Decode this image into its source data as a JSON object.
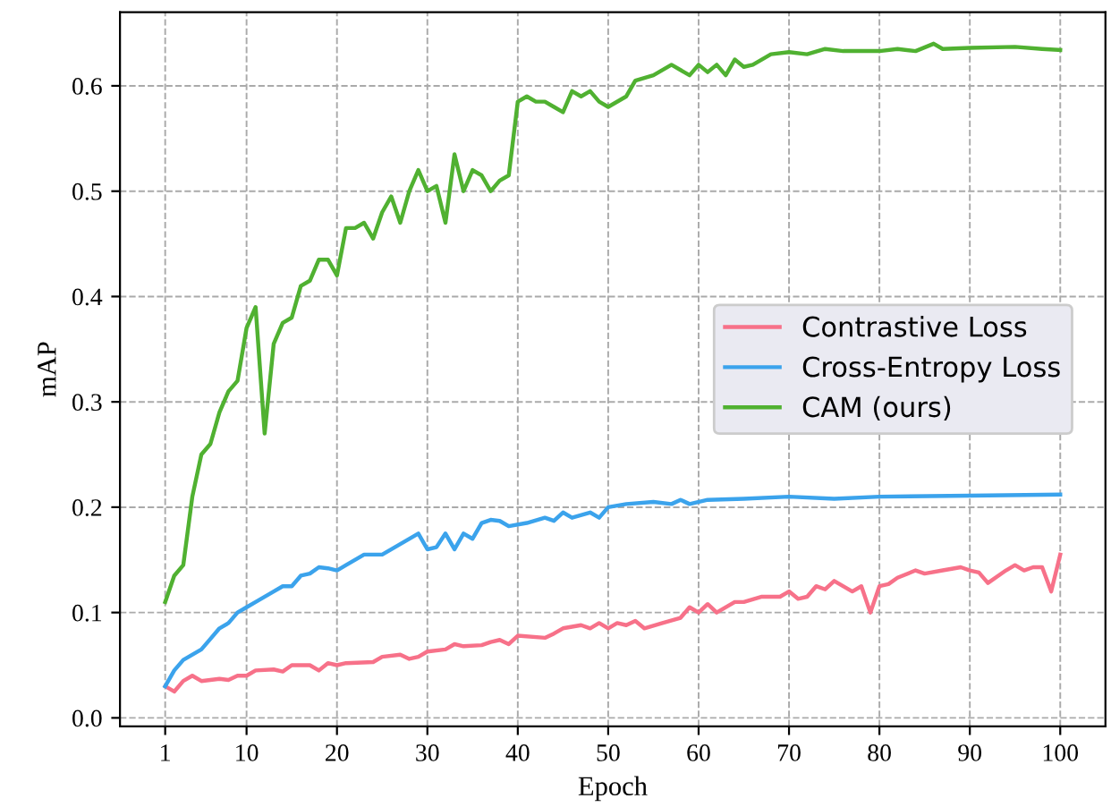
{
  "chart_data": {
    "type": "line",
    "xlabel": "Epoch",
    "ylabel": "mAP",
    "xlim": [
      -4,
      105
    ],
    "ylim": [
      -0.008,
      0.67
    ],
    "xticks": [
      1,
      10,
      20,
      30,
      40,
      50,
      60,
      70,
      80,
      90,
      100
    ],
    "yticks": [
      {
        "value": 0,
        "label": "0.0"
      },
      0.1,
      0.2,
      0.3,
      0.4,
      0.5,
      0.6
    ],
    "grid": true,
    "legend": "right",
    "marker": "none",
    "line_style": "solid",
    "series": [
      {
        "name": "Contrastive Loss",
        "color": "#f77189",
        "x": [
          1,
          2,
          3,
          4,
          5,
          7,
          8,
          9,
          10,
          11,
          13,
          14,
          15,
          17,
          18,
          19,
          20,
          21,
          24,
          25,
          27,
          28,
          29,
          30,
          32,
          33,
          34,
          36,
          37,
          38,
          39,
          40,
          43,
          44,
          45,
          47,
          48,
          49,
          50,
          51,
          52,
          53,
          54,
          56,
          58,
          59,
          60,
          61,
          62,
          64,
          65,
          67,
          69,
          70,
          71,
          72,
          73,
          74,
          75,
          77,
          78,
          79,
          80,
          81,
          82,
          84,
          85,
          87,
          89,
          90,
          91,
          92,
          94,
          95,
          96,
          97,
          98,
          99,
          100
        ],
        "values": [
          0.03,
          0.025,
          0.035,
          0.04,
          0.035,
          0.037,
          0.036,
          0.04,
          0.04,
          0.045,
          0.046,
          0.044,
          0.05,
          0.05,
          0.045,
          0.052,
          0.05,
          0.052,
          0.053,
          0.058,
          0.06,
          0.056,
          0.058,
          0.063,
          0.065,
          0.07,
          0.068,
          0.069,
          0.072,
          0.074,
          0.07,
          0.078,
          0.076,
          0.08,
          0.085,
          0.088,
          0.085,
          0.09,
          0.085,
          0.09,
          0.088,
          0.092,
          0.085,
          0.09,
          0.095,
          0.105,
          0.1,
          0.108,
          0.1,
          0.11,
          0.11,
          0.115,
          0.115,
          0.12,
          0.113,
          0.115,
          0.125,
          0.122,
          0.13,
          0.12,
          0.125,
          0.1,
          0.125,
          0.127,
          0.133,
          0.14,
          0.137,
          0.14,
          0.143,
          0.14,
          0.138,
          0.128,
          0.14,
          0.145,
          0.14,
          0.143,
          0.143,
          0.12,
          0.155
        ]
      },
      {
        "name": "Cross-Entropy Loss",
        "color": "#3ba3ec",
        "x": [
          1,
          2,
          3,
          5,
          6,
          7,
          8,
          9,
          10,
          11,
          13,
          14,
          15,
          16,
          17,
          18,
          19,
          20,
          21,
          23,
          25,
          27,
          29,
          30,
          31,
          32,
          33,
          34,
          35,
          36,
          37,
          38,
          39,
          41,
          43,
          44,
          45,
          46,
          48,
          49,
          50,
          52,
          55,
          57,
          58,
          59,
          61,
          65,
          70,
          75,
          80,
          90,
          100
        ],
        "values": [
          0.03,
          0.045,
          0.055,
          0.065,
          0.075,
          0.085,
          0.09,
          0.1,
          0.105,
          0.11,
          0.12,
          0.125,
          0.125,
          0.135,
          0.137,
          0.143,
          0.142,
          0.14,
          0.145,
          0.155,
          0.155,
          0.165,
          0.175,
          0.16,
          0.162,
          0.175,
          0.16,
          0.175,
          0.17,
          0.185,
          0.188,
          0.187,
          0.182,
          0.185,
          0.19,
          0.187,
          0.195,
          0.19,
          0.195,
          0.19,
          0.2,
          0.203,
          0.205,
          0.203,
          0.207,
          0.203,
          0.207,
          0.208,
          0.21,
          0.208,
          0.21,
          0.211,
          0.212
        ]
      },
      {
        "name": "CAM (ours)",
        "color": "#50b131",
        "x": [
          1,
          2,
          3,
          4,
          5,
          6,
          7,
          8,
          9,
          10,
          11,
          12,
          13,
          14,
          15,
          16,
          17,
          18,
          19,
          20,
          21,
          22,
          23,
          24,
          25,
          26,
          27,
          28,
          29,
          30,
          31,
          32,
          33,
          34,
          35,
          36,
          37,
          38,
          39,
          40,
          41,
          42,
          43,
          44,
          45,
          46,
          47,
          48,
          49,
          50,
          52,
          53,
          55,
          57,
          59,
          60,
          61,
          62,
          63,
          64,
          65,
          66,
          68,
          70,
          72,
          74,
          76,
          80,
          82,
          84,
          86,
          87,
          90,
          95,
          98,
          100
        ],
        "values": [
          0.11,
          0.135,
          0.145,
          0.21,
          0.25,
          0.26,
          0.29,
          0.31,
          0.32,
          0.37,
          0.39,
          0.27,
          0.355,
          0.375,
          0.38,
          0.41,
          0.415,
          0.435,
          0.435,
          0.42,
          0.465,
          0.465,
          0.47,
          0.455,
          0.48,
          0.495,
          0.47,
          0.5,
          0.52,
          0.5,
          0.505,
          0.47,
          0.535,
          0.5,
          0.52,
          0.515,
          0.5,
          0.51,
          0.515,
          0.585,
          0.59,
          0.585,
          0.585,
          0.58,
          0.575,
          0.595,
          0.59,
          0.595,
          0.585,
          0.58,
          0.59,
          0.605,
          0.61,
          0.62,
          0.61,
          0.62,
          0.613,
          0.62,
          0.61,
          0.625,
          0.618,
          0.62,
          0.63,
          0.632,
          0.63,
          0.635,
          0.633,
          0.633,
          0.635,
          0.633,
          0.64,
          0.635,
          0.636,
          0.637,
          0.635,
          0.634
        ]
      }
    ]
  }
}
